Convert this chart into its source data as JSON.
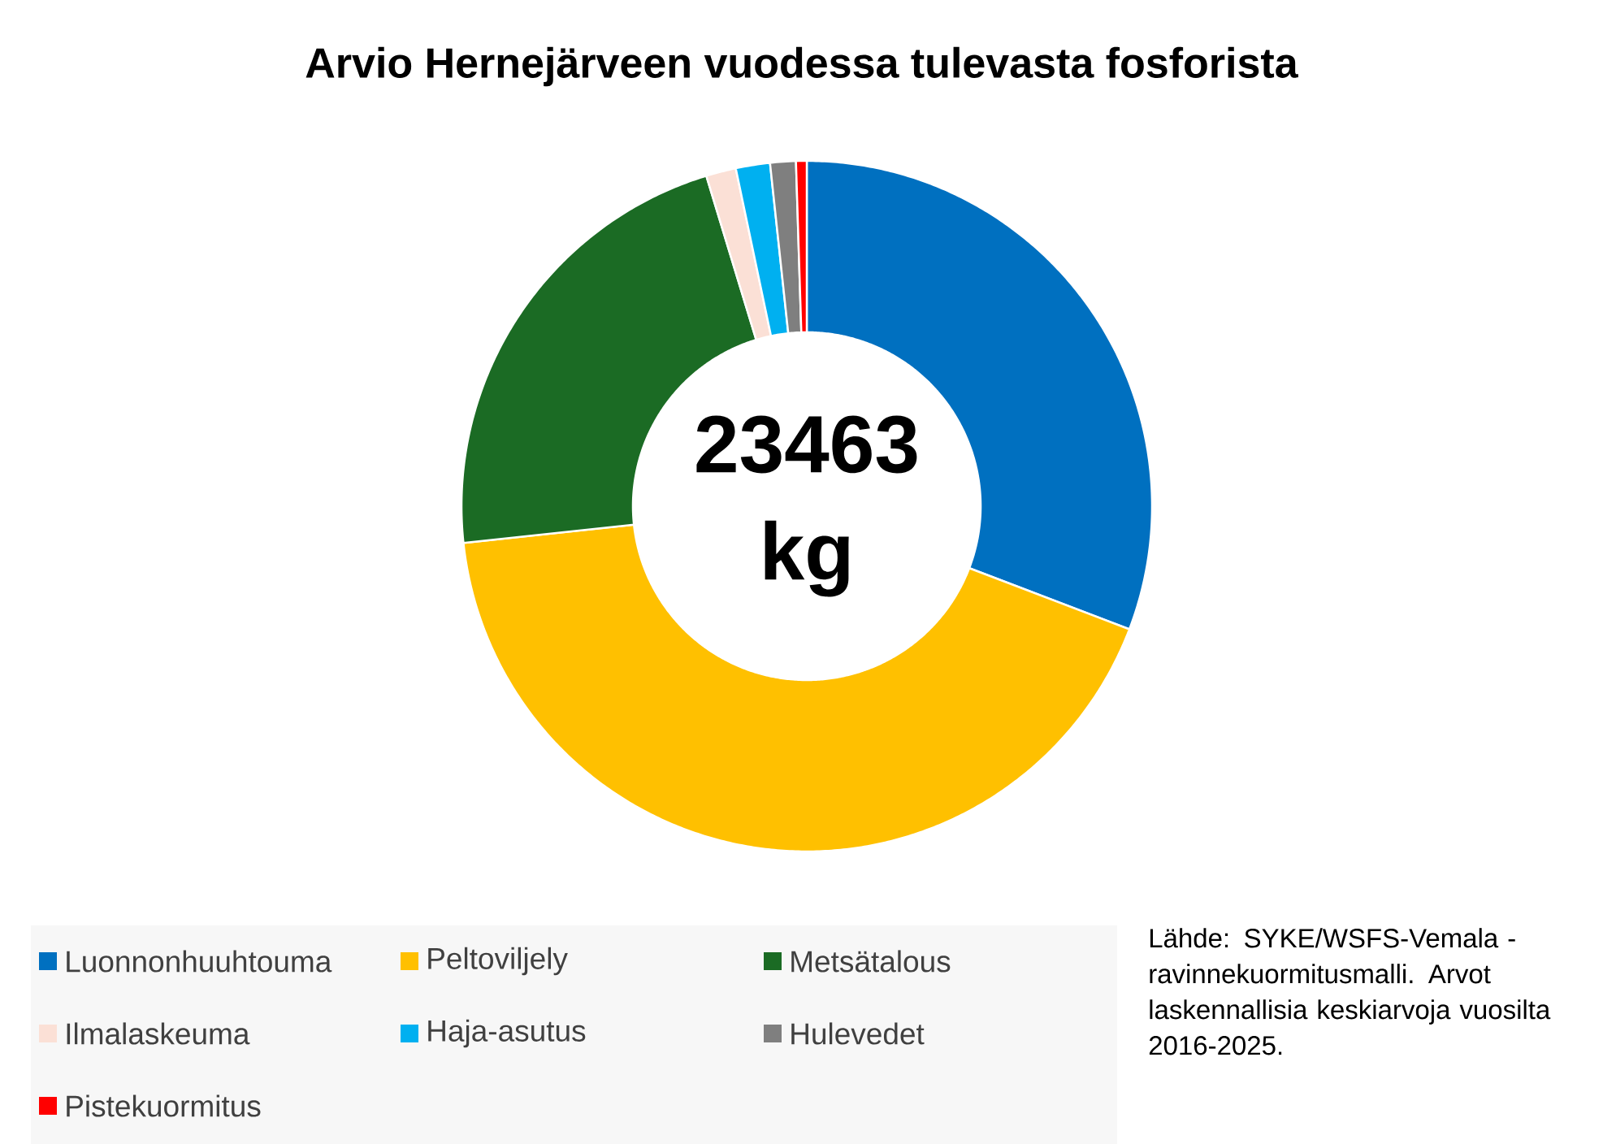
{
  "chart_data": {
    "type": "donut",
    "title": "Arvio Hernejärveen vuodessa tulevasta fosforista",
    "categories": [
      "Luonnonhuuhtouma",
      "Peltoviljely",
      "Metsätalous",
      "Ilmalaskeuma",
      "Haja-asutus",
      "Hulevedet",
      "Pistekuormitus"
    ],
    "values": [
      30.8,
      42.5,
      22.0,
      1.4,
      1.6,
      1.2,
      0.5
    ],
    "colors": [
      "#0070c0",
      "#ffc000",
      "#1b6b24",
      "#fbe0d6",
      "#00b0f0",
      "#7f7f7f",
      "#ff0000"
    ],
    "legend": "bottom",
    "annotations": [
      "23463 kg",
      "Lähde: SYKE/WSFS-Vemala -ravinnekuormitusmalli. Arvot laskennallisia keskiarvoja vuosilta 2016-2025."
    ]
  }
}
